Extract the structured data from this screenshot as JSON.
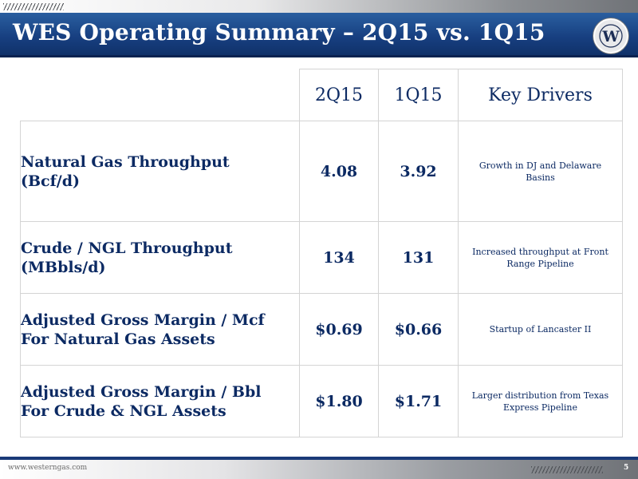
{
  "header": {
    "title": "WES Operating Summary – 2Q15 vs. 1Q15",
    "logo_letter": "W"
  },
  "table": {
    "columns": [
      "2Q15",
      "1Q15",
      "Key Drivers"
    ],
    "rows": [
      {
        "label_line1": "Natural Gas Throughput",
        "label_line2": "(Bcf/d)",
        "q2": "4.08",
        "q1": "3.92",
        "driver_line1": "Growth in DJ and Delaware",
        "driver_line2": "Basins"
      },
      {
        "label_line1": "Crude / NGL Throughput",
        "label_line2": "(MBbls/d)",
        "q2": "134",
        "q1": "131",
        "driver_line1": "Increased throughput at Front",
        "driver_line2": "Range Pipeline"
      },
      {
        "label_line1": "Adjusted Gross Margin / Mcf",
        "label_line2": "For Natural Gas Assets",
        "q2": "$0.69",
        "q1": "$0.66",
        "driver_line1": "Startup of Lancaster II",
        "driver_line2": ""
      },
      {
        "label_line1": "Adjusted Gross Margin / Bbl",
        "label_line2": "For Crude & NGL Assets",
        "q2": "$1.80",
        "q1": "$1.71",
        "driver_line1": "Larger distribution from Texas",
        "driver_line2": "Express Pipeline"
      }
    ]
  },
  "footer": {
    "url": "www.westerngas.com",
    "page_number": "5"
  },
  "colors": {
    "title_bar": "#173f80",
    "text_navy": "#0c2a63",
    "border": "#d4d4d4"
  }
}
